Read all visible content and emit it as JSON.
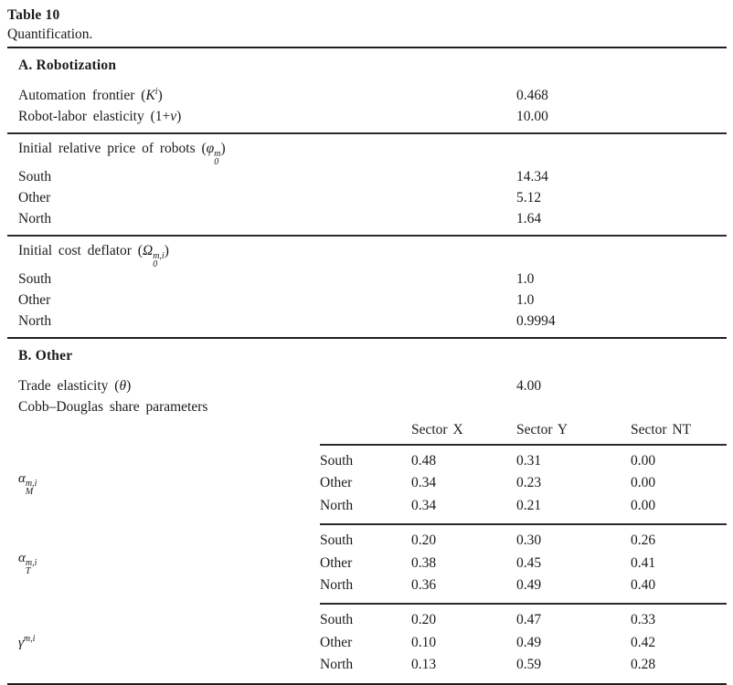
{
  "table": {
    "title": "Table 10",
    "caption": "Quantification.",
    "section_a": {
      "heading": "A. Robotization",
      "groups": [
        {
          "rows": [
            {
              "label": [
                {
                  "t": "Automation frontier ("
                },
                {
                  "t": "K",
                  "s": "i"
                },
                {
                  "t": "i",
                  "s": "sup-i"
                },
                {
                  "t": ")"
                }
              ],
              "value": "0.468"
            },
            {
              "label": [
                {
                  "t": "Robot-labor elasticity (1+"
                },
                {
                  "t": "ν",
                  "s": "i"
                },
                {
                  "t": ")"
                }
              ],
              "value": "10.00"
            }
          ]
        },
        {
          "rows": [
            {
              "label": [
                {
                  "t": "Initial relative price of robots ("
                },
                {
                  "t": "φ",
                  "s": "i"
                },
                {
                  "sup": "m",
                  "sub": "0"
                },
                {
                  "t": ")"
                }
              ],
              "value": ""
            },
            {
              "label": [
                {
                  "t": "South"
                }
              ],
              "value": "14.34"
            },
            {
              "label": [
                {
                  "t": "Other"
                }
              ],
              "value": "5.12"
            },
            {
              "label": [
                {
                  "t": "North"
                }
              ],
              "value": "1.64"
            }
          ]
        },
        {
          "rows": [
            {
              "label": [
                {
                  "t": "Initial cost deflator ("
                },
                {
                  "t": "Ω",
                  "s": "i"
                },
                {
                  "sup": "m,i",
                  "sub": "0"
                },
                {
                  "t": ")"
                }
              ],
              "value": ""
            },
            {
              "label": [
                {
                  "t": "South"
                }
              ],
              "value": "1.0"
            },
            {
              "label": [
                {
                  "t": "Other"
                }
              ],
              "value": "1.0"
            },
            {
              "label": [
                {
                  "t": "North"
                }
              ],
              "value": "0.9994"
            }
          ]
        }
      ]
    },
    "section_b": {
      "heading": "B. Other",
      "rows": [
        {
          "label": [
            {
              "t": "Trade elasticity ("
            },
            {
              "t": "θ",
              "s": "i"
            },
            {
              "t": ")"
            }
          ],
          "value": "4.00"
        },
        {
          "label": [
            {
              "t": "Cobb–Douglas share parameters"
            }
          ],
          "value": ""
        }
      ],
      "subtable": {
        "column_headers": [
          "Sector X",
          "Sector Y",
          "Sector NT"
        ],
        "blocks": [
          {
            "param": [
              {
                "t": "α",
                "s": "i"
              },
              {
                "sup": "m,i",
                "sub": "M"
              }
            ],
            "rows": [
              {
                "region": "South",
                "values": [
                  "0.48",
                  "0.31",
                  "0.00"
                ]
              },
              {
                "region": "Other",
                "values": [
                  "0.34",
                  "0.23",
                  "0.00"
                ]
              },
              {
                "region": "North",
                "values": [
                  "0.34",
                  "0.21",
                  "0.00"
                ]
              }
            ]
          },
          {
            "param": [
              {
                "t": "α",
                "s": "i"
              },
              {
                "sup": "m,i",
                "sub": "T"
              }
            ],
            "rows": [
              {
                "region": "South",
                "values": [
                  "0.20",
                  "0.30",
                  "0.26"
                ]
              },
              {
                "region": "Other",
                "values": [
                  "0.38",
                  "0.45",
                  "0.41"
                ]
              },
              {
                "region": "North",
                "values": [
                  "0.36",
                  "0.49",
                  "0.40"
                ]
              }
            ]
          },
          {
            "param": [
              {
                "t": "γ",
                "s": "i"
              },
              {
                "t": "m,i",
                "s": "sup-i"
              }
            ],
            "rows": [
              {
                "region": "South",
                "values": [
                  "0.20",
                  "0.47",
                  "0.33"
                ]
              },
              {
                "region": "Other",
                "values": [
                  "0.10",
                  "0.49",
                  "0.42"
                ]
              },
              {
                "region": "North",
                "values": [
                  "0.13",
                  "0.59",
                  "0.28"
                ]
              }
            ]
          }
        ]
      }
    },
    "colors": {
      "text": "#1b1b1b",
      "rule": "#2b2b2b",
      "background": "#ffffff"
    }
  }
}
